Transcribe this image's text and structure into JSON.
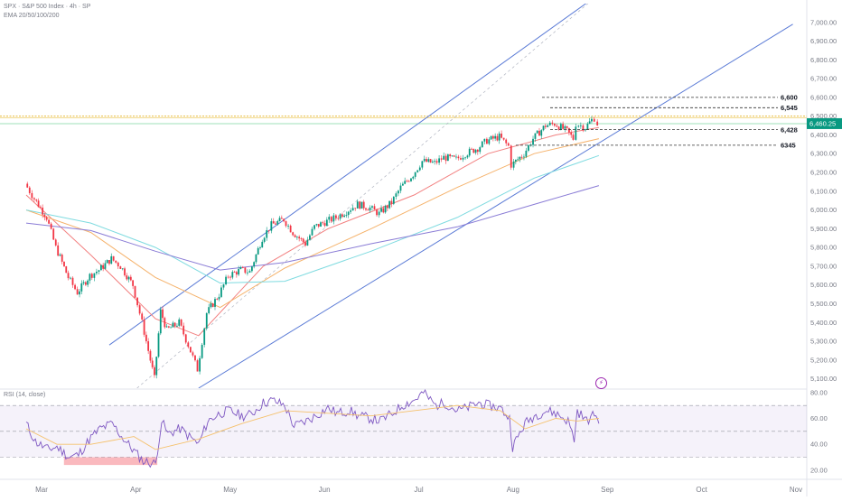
{
  "header": {
    "symbol_line": "SPX · S&P 500 Index · 4h · SP",
    "indicator_line": "EMA 20/50/100/200"
  },
  "rsi": {
    "title": "RSI (14, close)",
    "levels": [
      20,
      40,
      60,
      80
    ],
    "tick_labels": [
      "20.00",
      "40.00",
      "60.00",
      "80.00"
    ],
    "band": [
      30,
      70
    ],
    "mid": 50,
    "ylim": [
      15,
      82
    ]
  },
  "colors": {
    "up": "#089981",
    "down": "#f23645",
    "channel": "#5b7bd6",
    "ema20": "#f28080",
    "ema50": "#f5b26b",
    "ema100": "#7fdbe0",
    "ema200": "#8a7cd6",
    "rsi_line": "#7e57c2",
    "rsi_ma": "#f5c16c",
    "price_tag": "#089981"
  },
  "chart_data": {
    "type": "candlestick",
    "title": "SPX · S&P 500 Index · 4h · SP",
    "x_labels": [
      "Mar",
      "Apr",
      "May",
      "Jun",
      "Jul",
      "Aug",
      "Sep",
      "Oct",
      "Nov"
    ],
    "y_ticks": [
      5100,
      5200,
      5300,
      5400,
      5500,
      5600,
      5700,
      5800,
      5900,
      6000,
      6100,
      6200,
      6300,
      6400,
      6500,
      6600,
      6700,
      6800,
      6900,
      7000
    ],
    "y_tick_labels": [
      "5,100.00",
      "5,200.00",
      "5,300.00",
      "5,400.00",
      "5,500.00",
      "5,600.00",
      "5,700.00",
      "5,800.00",
      "5,900.00",
      "6,000.00",
      "6,100.00",
      "6,200.00",
      "6,300.00",
      "6,400.00",
      "6,500.00",
      "6,600.00",
      "6,700.00",
      "6,800.00",
      "6,900.00",
      "7,000.00"
    ],
    "ylim": [
      5050,
      7100
    ],
    "last_price": 6460.25,
    "last_price_label": "6,460.25",
    "levels": [
      {
        "value": 6600,
        "label": "6,600"
      },
      {
        "value": 6545,
        "label": "6,545"
      },
      {
        "value": 6428,
        "label": "6,428"
      },
      {
        "value": 6345,
        "label": "6345"
      }
    ],
    "yellow_line": 6500,
    "green_line": 6460,
    "price_path": [
      [
        "Feb 24",
        6140
      ],
      [
        "Feb 27",
        6060
      ],
      [
        "Mar 3",
        5960
      ],
      [
        "Mar 6",
        5800
      ],
      [
        "Mar 10",
        5640
      ],
      [
        "Mar 13",
        5560
      ],
      [
        "Mar 17",
        5650
      ],
      [
        "Mar 20",
        5680
      ],
      [
        "Mar 24",
        5740
      ],
      [
        "Mar 27",
        5700
      ],
      [
        "Mar 31",
        5600
      ],
      [
        "Apr 3",
        5400
      ],
      [
        "Apr 7",
        5100
      ],
      [
        "Apr 9",
        5460
      ],
      [
        "Apr 11",
        5360
      ],
      [
        "Apr 15",
        5400
      ],
      [
        "Apr 18",
        5280
      ],
      [
        "Apr 21",
        5150
      ],
      [
        "Apr 24",
        5450
      ],
      [
        "Apr 28",
        5550
      ],
      [
        "May 1",
        5650
      ],
      [
        "May 5",
        5680
      ],
      [
        "May 8",
        5670
      ],
      [
        "May 12",
        5850
      ],
      [
        "May 15",
        5920
      ],
      [
        "May 19",
        5950
      ],
      [
        "May 22",
        5880
      ],
      [
        "May 26",
        5820
      ],
      [
        "May 29",
        5910
      ],
      [
        "Jun 2",
        5940
      ],
      [
        "Jun 5",
        5960
      ],
      [
        "Jun 9",
        6000
      ],
      [
        "Jun 12",
        6030
      ],
      [
        "Jun 16",
        6010
      ],
      [
        "Jun 19",
        5980
      ],
      [
        "Jun 23",
        6040
      ],
      [
        "Jun 26",
        6120
      ],
      [
        "Jun 30",
        6190
      ],
      [
        "Jul 3",
        6260
      ],
      [
        "Jul 7",
        6250
      ],
      [
        "Jul 10",
        6280
      ],
      [
        "Jul 14",
        6270
      ],
      [
        "Jul 17",
        6300
      ],
      [
        "Jul 21",
        6330
      ],
      [
        "Jul 24",
        6370
      ],
      [
        "Jul 28",
        6390
      ],
      [
        "Jul 31",
        6340
      ],
      [
        "Aug 1",
        6240
      ],
      [
        "Aug 5",
        6300
      ],
      [
        "Aug 8",
        6380
      ],
      [
        "Aug 12",
        6450
      ],
      [
        "Aug 15",
        6460
      ],
      [
        "Aug 19",
        6420
      ],
      [
        "Aug 21",
        6380
      ],
      [
        "Aug 22",
        6460
      ],
      [
        "Aug 25",
        6440
      ],
      [
        "Aug 27",
        6480
      ],
      [
        "Aug 28",
        6490
      ],
      [
        "Aug 29",
        6460
      ]
    ],
    "series": [
      {
        "name": "EMA 20",
        "points": [
          [
            "Feb 24",
            6080
          ],
          [
            "Mar 17",
            5760
          ],
          [
            "Apr 7",
            5420
          ],
          [
            "Apr 21",
            5330
          ],
          [
            "May 12",
            5700
          ],
          [
            "Jun 2",
            5900
          ],
          [
            "Jun 30",
            6080
          ],
          [
            "Jul 24",
            6300
          ],
          [
            "Aug 15",
            6400
          ],
          [
            "Aug 29",
            6440
          ]
        ]
      },
      {
        "name": "EMA 50",
        "points": [
          [
            "Feb 24",
            6000
          ],
          [
            "Mar 17",
            5880
          ],
          [
            "Apr 7",
            5640
          ],
          [
            "Apr 28",
            5480
          ],
          [
            "May 19",
            5690
          ],
          [
            "Jun 16",
            5900
          ],
          [
            "Jul 14",
            6120
          ],
          [
            "Aug 8",
            6300
          ],
          [
            "Aug 29",
            6380
          ]
        ]
      },
      {
        "name": "EMA 100",
        "points": [
          [
            "Feb 24",
            6000
          ],
          [
            "Mar 17",
            5930
          ],
          [
            "Apr 7",
            5800
          ],
          [
            "Apr 28",
            5610
          ],
          [
            "May 19",
            5620
          ],
          [
            "Jun 16",
            5780
          ],
          [
            "Jul 14",
            5960
          ],
          [
            "Aug 8",
            6170
          ],
          [
            "Aug 29",
            6290
          ]
        ]
      },
      {
        "name": "EMA 200",
        "points": [
          [
            "Feb 24",
            5930
          ],
          [
            "Mar 17",
            5890
          ],
          [
            "Apr 7",
            5780
          ],
          [
            "Apr 28",
            5680
          ],
          [
            "May 19",
            5720
          ],
          [
            "Jun 16",
            5820
          ],
          [
            "Jul 14",
            5910
          ],
          [
            "Aug 8",
            6030
          ],
          [
            "Aug 29",
            6130
          ]
        ]
      }
    ],
    "channel": {
      "upper": [
        [
          "Mar 23",
          5280
        ],
        [
          "Aug 29",
          7150
        ]
      ],
      "lower": [
        [
          "Apr 21",
          5050
        ],
        [
          "Oct 31",
          6990
        ]
      ],
      "mid_dotted": [
        [
          "Apr 1",
          5050
        ],
        [
          "Aug 29",
          7150
        ]
      ]
    },
    "rsi_path": [
      [
        "Feb 24",
        56
      ],
      [
        "Feb 27",
        42
      ],
      [
        "Mar 3",
        36
      ],
      [
        "Mar 6",
        38
      ],
      [
        "Mar 10",
        30
      ],
      [
        "Mar 13",
        32
      ],
      [
        "Mar 17",
        45
      ],
      [
        "Mar 20",
        52
      ],
      [
        "Mar 24",
        56
      ],
      [
        "Mar 27",
        46
      ],
      [
        "Mar 31",
        35
      ],
      [
        "Apr 3",
        27
      ],
      [
        "Apr 7",
        25
      ],
      [
        "Apr 9",
        58
      ],
      [
        "Apr 11",
        48
      ],
      [
        "Apr 15",
        52
      ],
      [
        "Apr 18",
        46
      ],
      [
        "Apr 21",
        40
      ],
      [
        "Apr 24",
        58
      ],
      [
        "Apr 28",
        64
      ],
      [
        "May 1",
        66
      ],
      [
        "May 5",
        62
      ],
      [
        "May 8",
        63
      ],
      [
        "May 12",
        72
      ],
      [
        "May 15",
        74
      ],
      [
        "May 19",
        70
      ],
      [
        "May 22",
        54
      ],
      [
        "May 26",
        58
      ],
      [
        "May 29",
        62
      ],
      [
        "Jun 2",
        68
      ],
      [
        "Jun 5",
        64
      ],
      [
        "Jun 9",
        66
      ],
      [
        "Jun 12",
        62
      ],
      [
        "Jun 16",
        60
      ],
      [
        "Jun 19",
        58
      ],
      [
        "Jun 23",
        64
      ],
      [
        "Jun 26",
        70
      ],
      [
        "Jun 30",
        74
      ],
      [
        "Jul 3",
        80
      ],
      [
        "Jul 7",
        70
      ],
      [
        "Jul 10",
        72
      ],
      [
        "Jul 14",
        66
      ],
      [
        "Jul 17",
        68
      ],
      [
        "Jul 21",
        72
      ],
      [
        "Jul 24",
        70
      ],
      [
        "Jul 28",
        68
      ],
      [
        "Jul 31",
        60
      ],
      [
        "Aug 1",
        38
      ],
      [
        "Aug 5",
        56
      ],
      [
        "Aug 8",
        62
      ],
      [
        "Aug 12",
        66
      ],
      [
        "Aug 15",
        64
      ],
      [
        "Aug 19",
        58
      ],
      [
        "Aug 21",
        44
      ],
      [
        "Aug 22",
        66
      ],
      [
        "Aug 25",
        58
      ],
      [
        "Aug 27",
        62
      ],
      [
        "Aug 28",
        64
      ],
      [
        "Aug 29",
        56
      ]
    ],
    "rsi_ma_path": [
      [
        "Feb 24",
        52
      ],
      [
        "Mar 6",
        40
      ],
      [
        "Mar 17",
        40
      ],
      [
        "Mar 31",
        46
      ],
      [
        "Apr 7",
        36
      ],
      [
        "Apr 21",
        44
      ],
      [
        "May 5",
        56
      ],
      [
        "May 19",
        66
      ],
      [
        "Jun 2",
        64
      ],
      [
        "Jun 16",
        62
      ],
      [
        "Jun 30",
        66
      ],
      [
        "Jul 14",
        70
      ],
      [
        "Jul 28",
        66
      ],
      [
        "Aug 5",
        52
      ],
      [
        "Aug 15",
        60
      ],
      [
        "Aug 22",
        58
      ],
      [
        "Aug 29",
        60
      ]
    ],
    "legend": "none",
    "grid": false
  }
}
